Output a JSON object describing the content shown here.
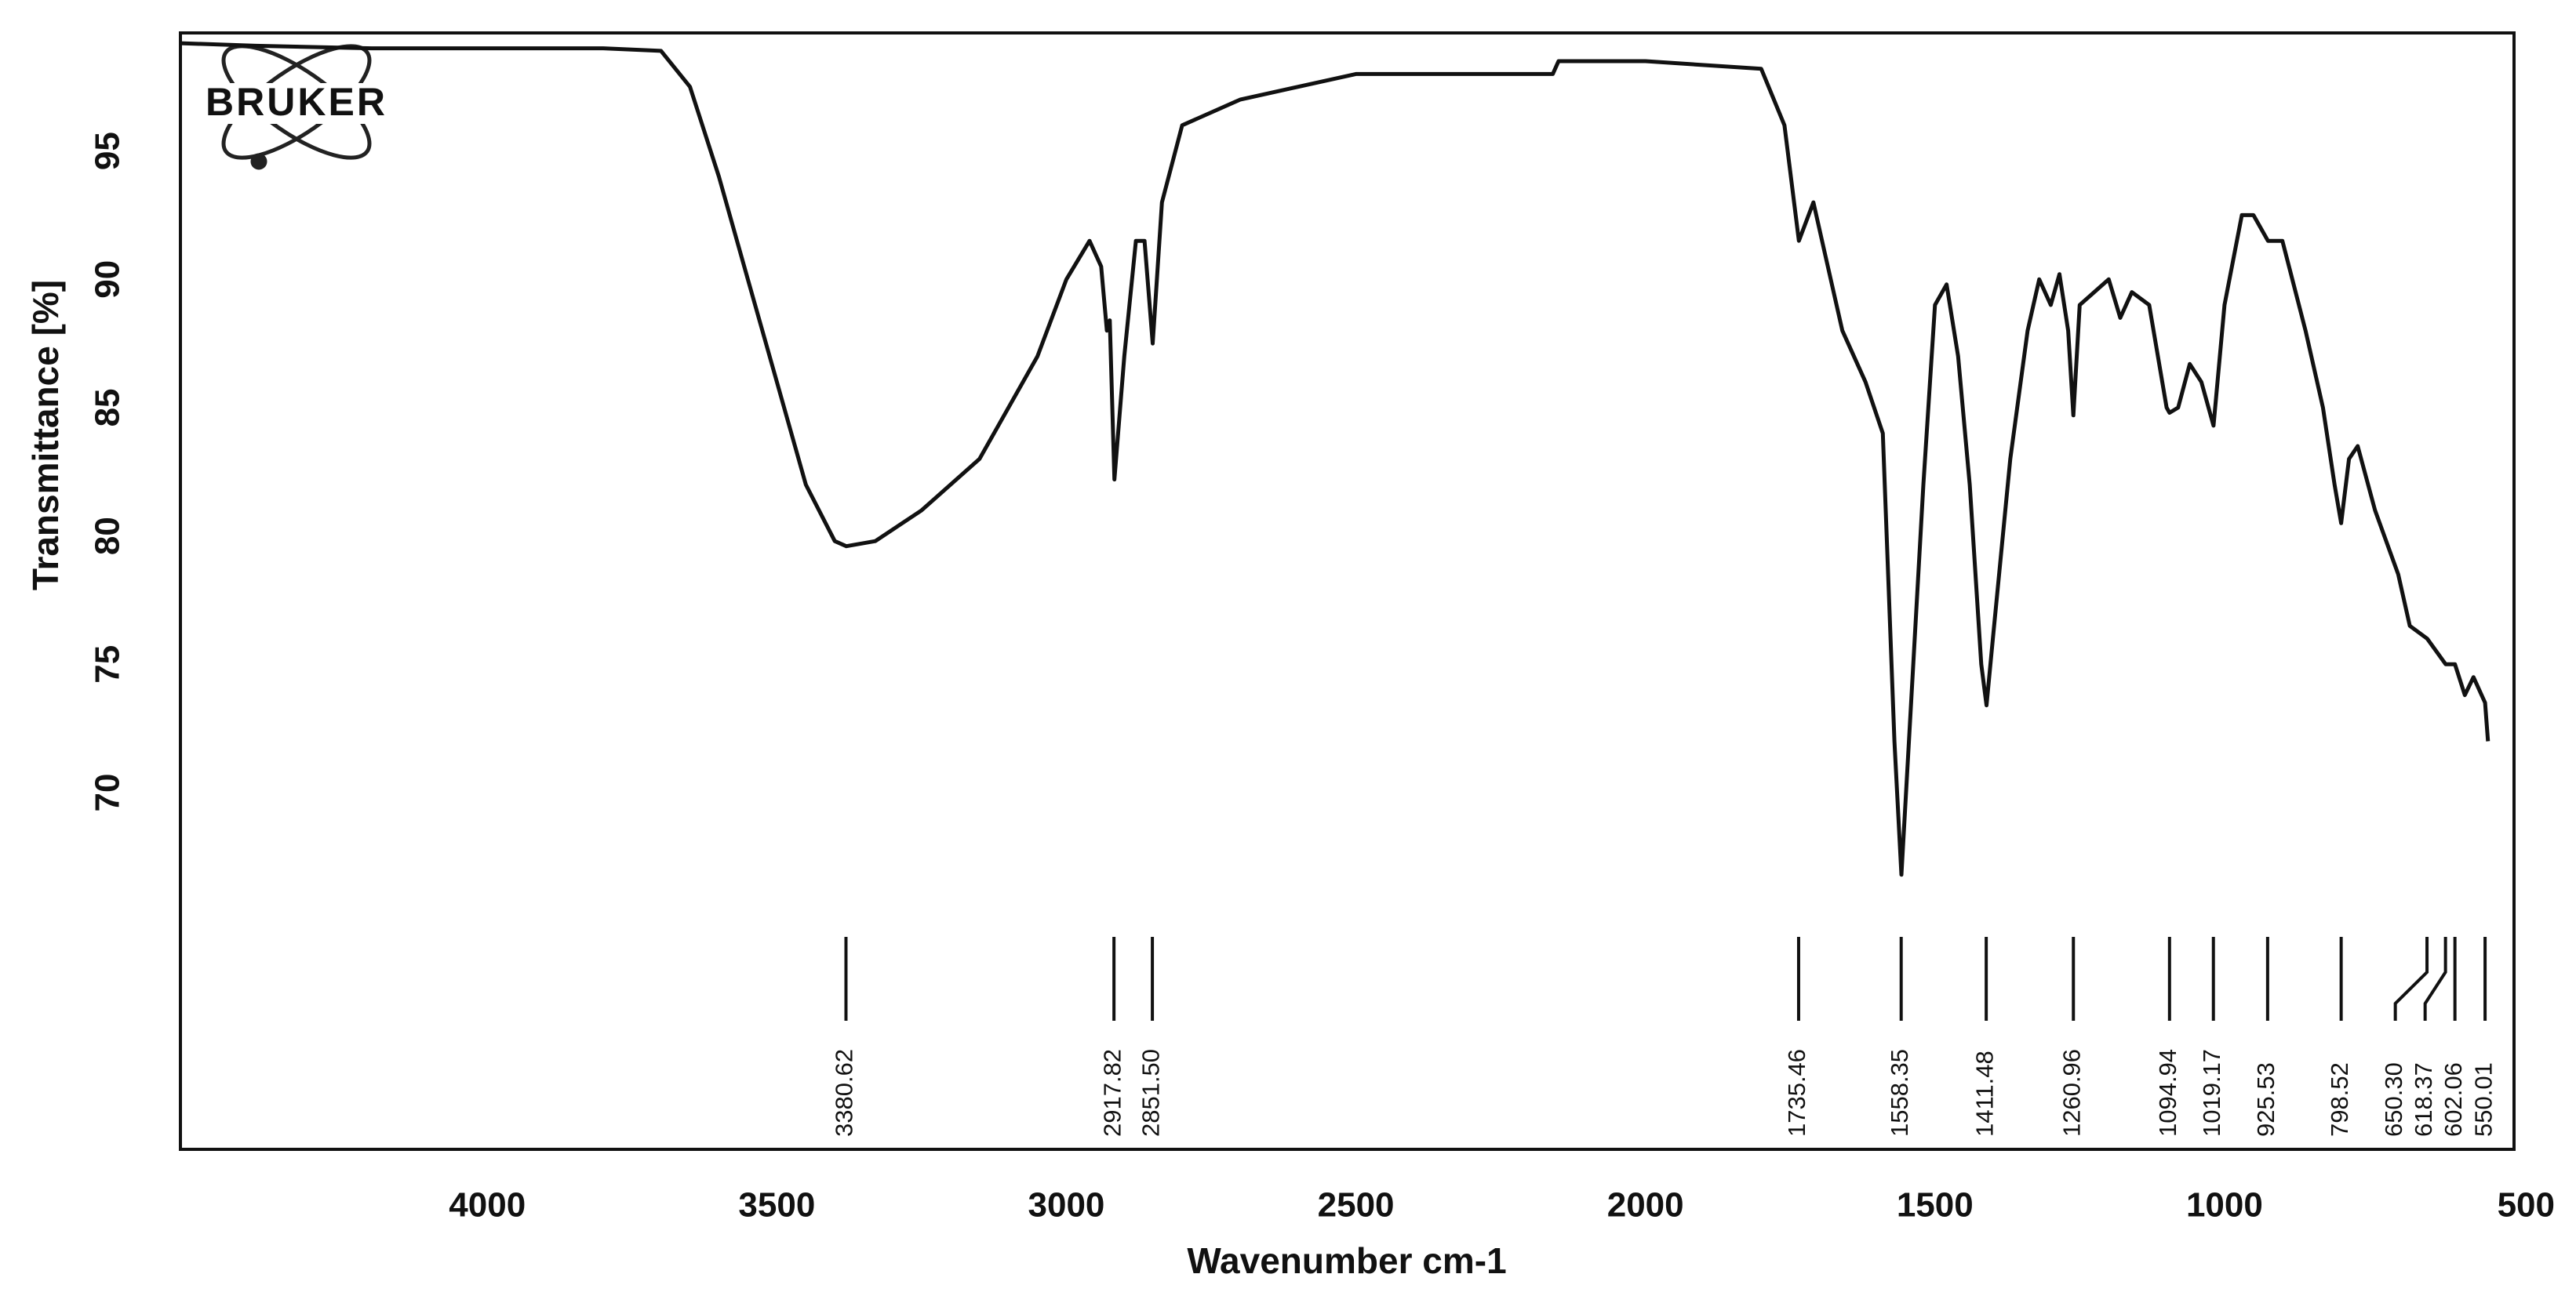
{
  "chart_data": {
    "type": "line",
    "logo": "BRUKER",
    "xlabel": "Wavenumber cm-1",
    "ylabel": "Transmittance [%]",
    "color": "#111111",
    "xlim": [
      4530,
      500
    ],
    "ylim": [
      56.1,
      99.6
    ],
    "xticks": [
      4000,
      3500,
      3000,
      2500,
      2000,
      1500,
      1000,
      500
    ],
    "yticks": [
      70,
      75,
      80,
      85,
      90,
      95
    ],
    "grid": false,
    "x": [
      4530,
      4400,
      4200,
      4000,
      3800,
      3700,
      3650,
      3600,
      3550,
      3500,
      3450,
      3400,
      3380,
      3330,
      3250,
      3150,
      3050,
      3000,
      2960,
      2940,
      2930,
      2925,
      2917,
      2900,
      2880,
      2865,
      2851,
      2835,
      2800,
      2700,
      2500,
      2300,
      2160,
      2150,
      2000,
      1800,
      1760,
      1735,
      1710,
      1690,
      1660,
      1620,
      1590,
      1570,
      1558,
      1545,
      1520,
      1500,
      1480,
      1460,
      1440,
      1420,
      1411,
      1400,
      1370,
      1340,
      1320,
      1300,
      1285,
      1270,
      1261,
      1250,
      1200,
      1180,
      1160,
      1130,
      1100,
      1095,
      1080,
      1060,
      1040,
      1019,
      1000,
      970,
      950,
      925,
      900,
      860,
      830,
      810,
      798.5,
      785,
      770,
      740,
      700,
      680,
      650,
      618,
      602,
      585,
      570,
      550,
      545
    ],
    "values": [
      99.2,
      99.1,
      99.0,
      99.0,
      99.0,
      98.9,
      97.5,
      94,
      90,
      86,
      82,
      79.8,
      79.6,
      79.8,
      81,
      83,
      87,
      90,
      91.5,
      90.5,
      88,
      88.4,
      82.2,
      87,
      91.5,
      91.5,
      87.5,
      93,
      96,
      97,
      98,
      98,
      98,
      98.5,
      98.5,
      98.2,
      96,
      91.5,
      93,
      91,
      88,
      86,
      84,
      72,
      66.8,
      72,
      82,
      89,
      89.8,
      87,
      82,
      75,
      73.4,
      76,
      83,
      88,
      90,
      89,
      90.2,
      88,
      84.7,
      89,
      90,
      88.5,
      89.5,
      89,
      85,
      84.8,
      85,
      86.7,
      86,
      84.3,
      89,
      92.5,
      92.5,
      91.5,
      91.5,
      88,
      85,
      82,
      80.5,
      83,
      83.5,
      81,
      78.5,
      76.5,
      76,
      75,
      75,
      73.8,
      74.5,
      73.5,
      72
    ],
    "peaks": [
      3380.62,
      {
        "value": 2917.82,
        "label": "2917.82"
      },
      {
        "value": 2851.5,
        "label": "2851.50"
      },
      1735.46,
      1558.35,
      1411.48,
      1260.96,
      1094.94,
      1019.17,
      925.53,
      798.52,
      {
        "value": 650.3,
        "label": "650.30"
      },
      618.37,
      602.06,
      550.01
    ]
  }
}
